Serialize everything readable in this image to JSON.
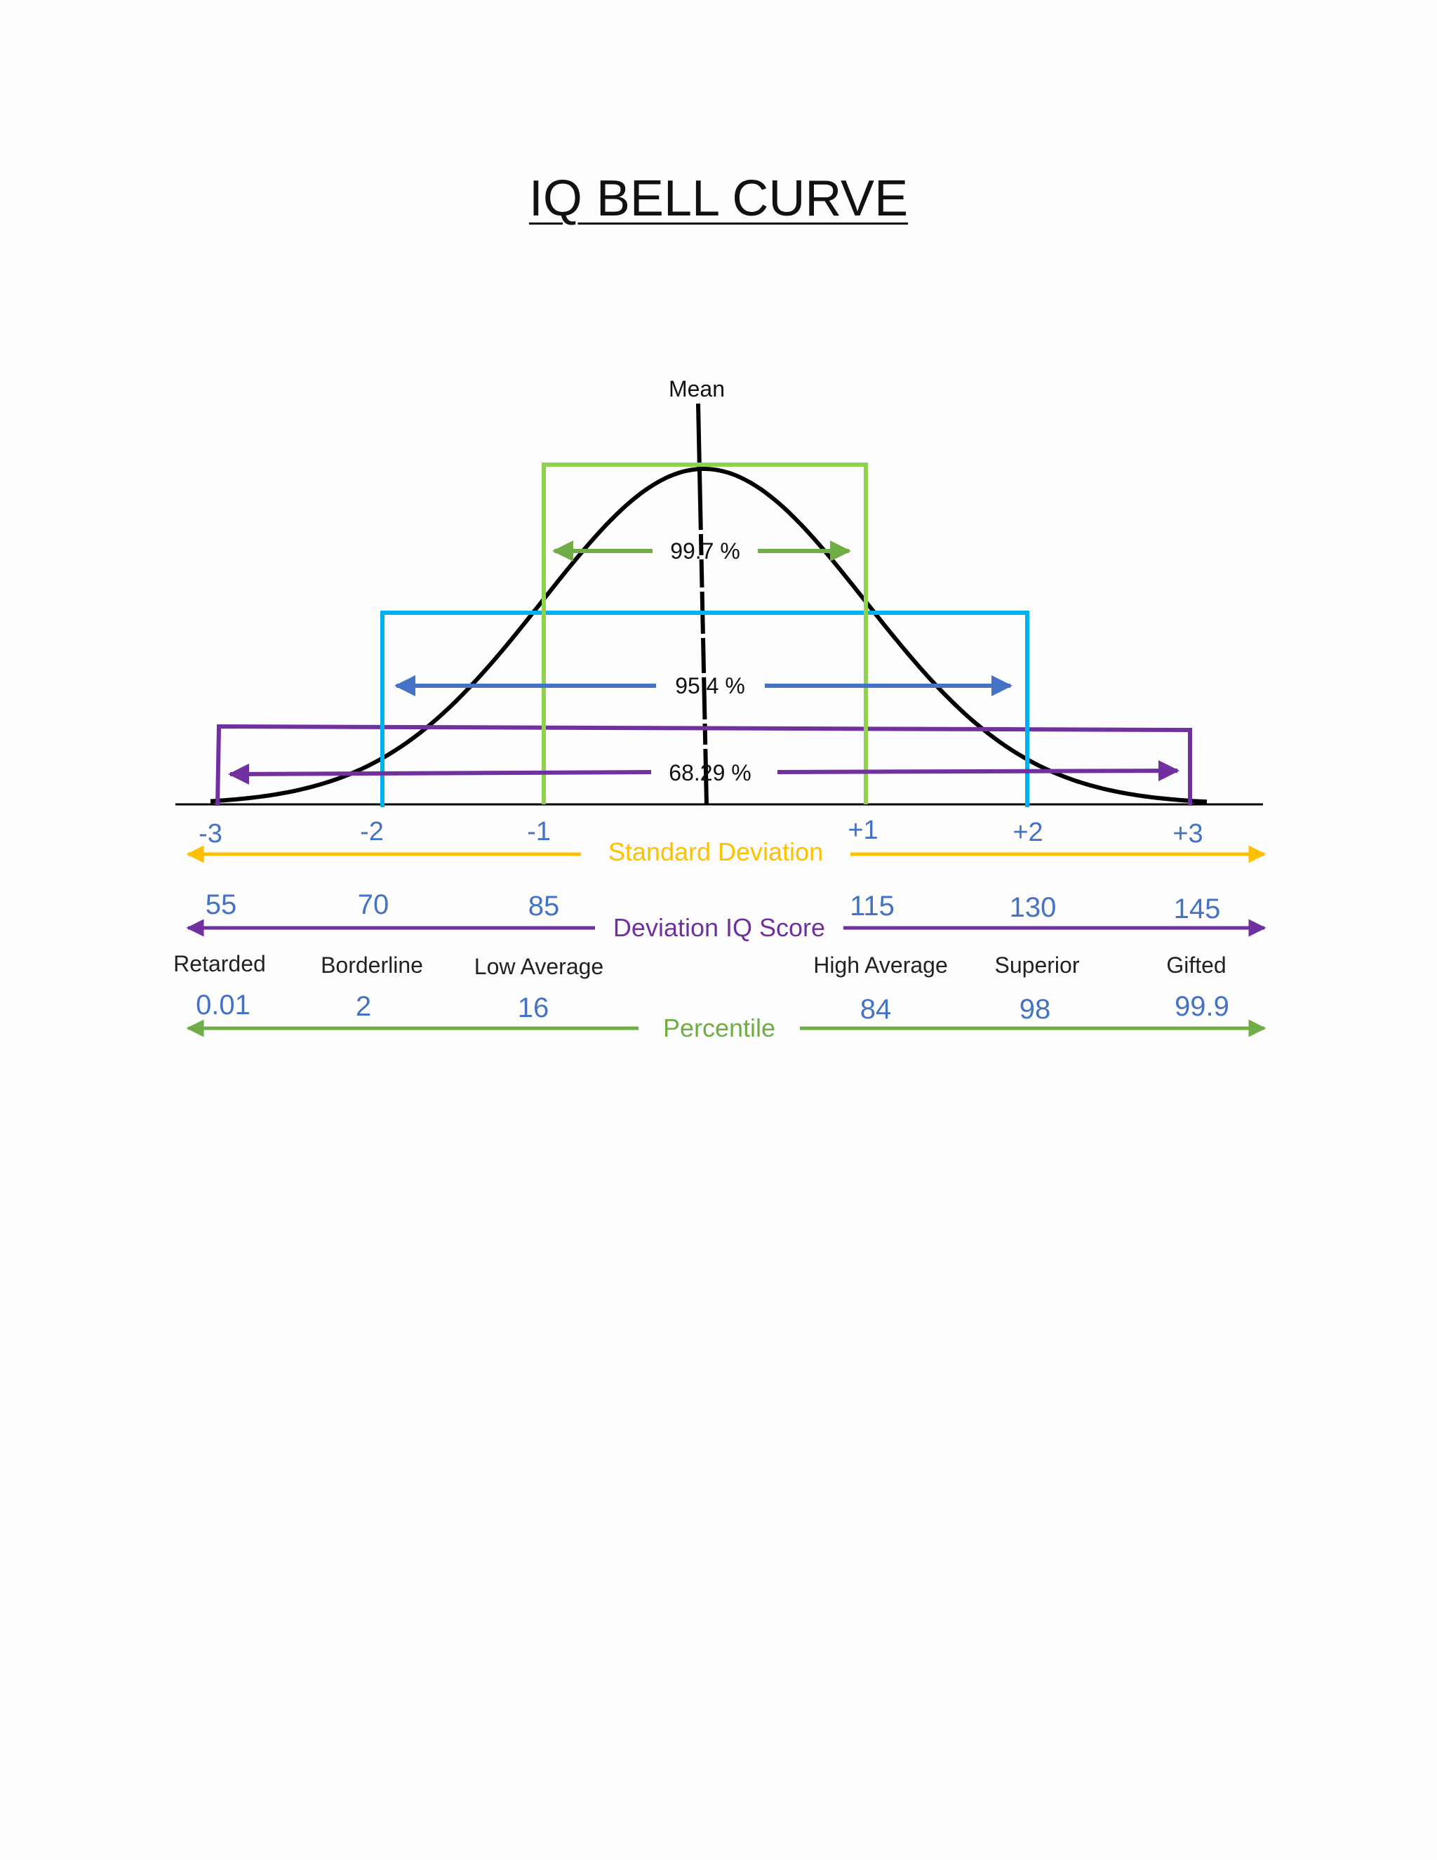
{
  "title": "IQ BELL CURVE",
  "mean_label": "Mean",
  "colors": {
    "curve": "#000000",
    "band_1sd": "#92d050",
    "band_2sd": "#00b0f0",
    "band_3sd": "#7030a0",
    "arrow_1sd": "#70ad47",
    "arrow_2sd": "#4472c4",
    "arrow_3sd": "#7030a0",
    "values": "#4472c4",
    "sd_axis": "#ffc000",
    "iq_axis": "#7030a0",
    "pct_axis": "#70ad47"
  },
  "bands": [
    {
      "id": "band-1sd",
      "label": "99.7 %"
    },
    {
      "id": "band-2sd",
      "label": "95.4 %"
    },
    {
      "id": "band-3sd",
      "label": "68.29 %"
    }
  ],
  "axes": {
    "sd": {
      "label": "Standard Deviation",
      "ticks": [
        "-3",
        "-2",
        "-1",
        "+1",
        "+2",
        "+3"
      ]
    },
    "iq": {
      "label": "Deviation IQ Score",
      "ticks": [
        "55",
        "70",
        "85",
        "115",
        "130",
        "145"
      ]
    },
    "categories": [
      "Retarded",
      "Borderline",
      "Low Average",
      "High Average",
      "Superior",
      "Gifted"
    ],
    "percentile": {
      "label": "Percentile",
      "ticks": [
        "0.01",
        "2",
        "16",
        "84",
        "98",
        "99.9"
      ]
    }
  }
}
